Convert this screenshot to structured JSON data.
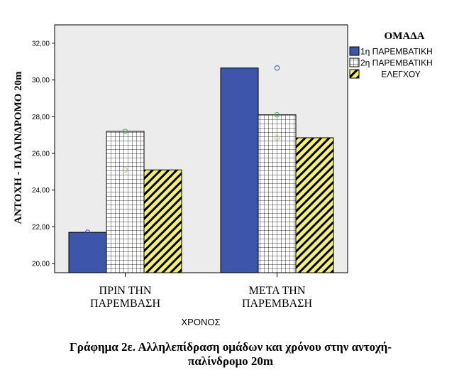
{
  "colors": {
    "plot_bg": "#ececec",
    "group1_fill": "#3d55ab",
    "group2_fill": "#ffffff",
    "group3_fill": "#f6f26a",
    "pattern_line": "#000000",
    "outlier_blue": "#3d55ab",
    "outlier_green": "#4caf50",
    "outlier_tan": "#c8c080"
  },
  "chart_data": {
    "type": "bar",
    "xlabel": "ΧΡΟΝΟΣ",
    "ylabel": "ΑΝΤΟΧΗ - ΠΑΛΙΝΔΡΟΜΟ 20m",
    "ylim": [
      19.5,
      33
    ],
    "yticks": [
      "20,00",
      "22,00",
      "24,00",
      "26,00",
      "28,00",
      "30,00",
      "32,00"
    ],
    "categories": [
      [
        "ΠΡΙΝ ΤΗΝ",
        "ΠΑΡΕΜΒΑΣΗ"
      ],
      [
        "ΜΕΤΑ ΤΗΝ",
        "ΠΑΡΕΜΒΑΣΗ"
      ]
    ],
    "legend_title": "ΟΜΑΔΑ",
    "legend_position": "right",
    "series": [
      {
        "name": "1η ΠΑΡΕΜΒΑΤΙΚΗ",
        "pattern": "solid",
        "values": [
          21.7,
          30.65
        ]
      },
      {
        "name": "2η ΠΑΡΕΜΒΑΤΙΚΗ",
        "pattern": "grid",
        "values": [
          27.2,
          28.1
        ]
      },
      {
        "name": "ΕΛΕΓΧΟΥ",
        "pattern": "diagonal",
        "values": [
          25.1,
          26.85
        ]
      }
    ],
    "points": [
      {
        "category": 0,
        "series": 0,
        "value": 21.7,
        "color": "outlier_blue"
      },
      {
        "category": 0,
        "series": 1,
        "value": 27.2,
        "color": "outlier_green"
      },
      {
        "category": 0,
        "series": 1,
        "value": 25.1,
        "color": "outlier_tan"
      },
      {
        "category": 1,
        "series": 1,
        "value": 30.65,
        "color": "outlier_blue"
      },
      {
        "category": 1,
        "series": 1,
        "value": 28.1,
        "color": "outlier_green"
      },
      {
        "category": 1,
        "series": 1,
        "value": 26.85,
        "color": "outlier_tan"
      }
    ],
    "caption": [
      "Γράφημα 2ε. Αλληλεπίδραση ομάδων και χρόνου στην αντοχή-",
      "παλίνδρομο 20m"
    ]
  }
}
